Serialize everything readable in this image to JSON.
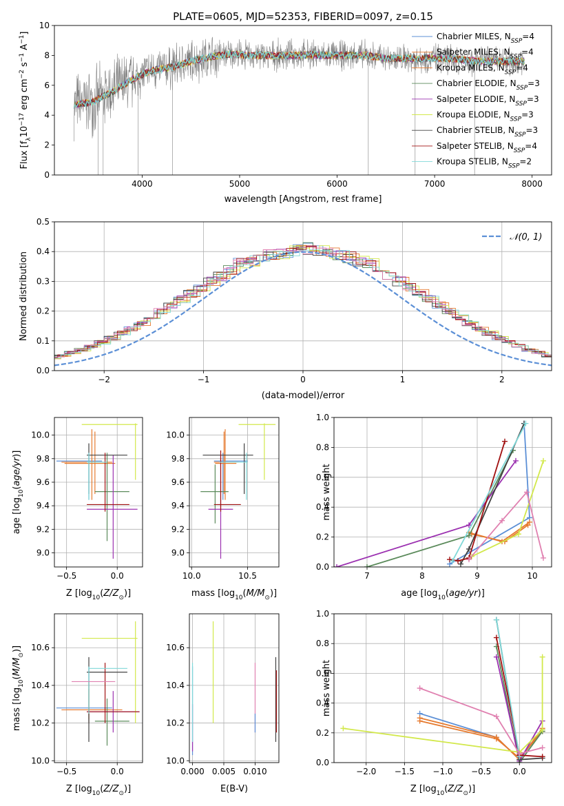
{
  "figure_title": "PLATE=0605, MJD=52353, FIBERID=0097, z=0.15",
  "colors": {
    "Chabrier MILES": "#5b8fd6",
    "Salpeter MILES": "#e67a2e",
    "Kroupa MILES": "#e67a2e",
    "Chabrier ELODIE": "#5a8a5a",
    "Salpeter ELODIE": "#9b30b0",
    "Kroupa ELODIE": "#d2e84a",
    "Chabrier STELIB": "#404040",
    "Salpeter STELIB": "#a01010",
    "Kroupa STELIB": "#7fd8d8",
    "pink": "#e080b0",
    "gray": "#808080",
    "gauss": "#5b8fd6"
  },
  "chart_data": [
    {
      "id": "spectrum",
      "type": "line",
      "title": "PLATE=0605, MJD=52353, FIBERID=0097, z=0.15",
      "xlabel": "wavelength [Angstrom, rest frame]",
      "ylabel": "Flux [f",
      "xlim": [
        3100,
        8200
      ],
      "ylim": [
        0,
        10
      ],
      "xticks": [
        4000,
        5000,
        6000,
        7000,
        8000
      ],
      "yticks": [
        0,
        2,
        4,
        6,
        8,
        10
      ],
      "legend_position": "right",
      "legend": [
        {
          "name": "Chabrier MILES, N",
          "sub": "SSP",
          "eq": "=4",
          "color": "#5b8fd6"
        },
        {
          "name": "Salpeter MILES, N",
          "sub": "SSP",
          "eq": "=4",
          "color": "#e67a2e"
        },
        {
          "name": "Kroupa MILES, N",
          "sub": "SSP",
          "eq": "=4",
          "color": "#e67a2e"
        },
        {
          "name": "Chabrier ELODIE, N",
          "sub": "SSP",
          "eq": "=3",
          "color": "#5a8a5a"
        },
        {
          "name": "Salpeter ELODIE, N",
          "sub": "SSP",
          "eq": "=3",
          "color": "#9b30b0"
        },
        {
          "name": "Kroupa ELODIE, N",
          "sub": "SSP",
          "eq": "=3",
          "color": "#d2e84a"
        },
        {
          "name": "Chabrier STELIB, N",
          "sub": "SSP",
          "eq": "=3",
          "color": "#404040"
        },
        {
          "name": "Salpeter STELIB, N",
          "sub": "SSP",
          "eq": "=4",
          "color": "#a01010"
        },
        {
          "name": "Kroupa STELIB, N",
          "sub": "SSP",
          "eq": "=2",
          "color": "#7fd8d8"
        }
      ],
      "model_continuum": {
        "x": [
          3300,
          3500,
          3700,
          3900,
          4100,
          4300,
          4500,
          4700,
          4900,
          5100,
          5300,
          5500,
          5700,
          5900,
          6100,
          6300,
          6500,
          6700,
          6900,
          7100,
          7300,
          7500,
          7700,
          7900
        ],
        "y": [
          4.7,
          4.9,
          5.6,
          6.4,
          7.0,
          7.2,
          7.6,
          7.9,
          8.1,
          8.0,
          8.0,
          8.0,
          8.05,
          8.0,
          8.0,
          8.0,
          7.8,
          7.8,
          7.8,
          7.8,
          7.7,
          7.6,
          7.6,
          7.6
        ]
      }
    },
    {
      "id": "residuals",
      "type": "histogram",
      "xlabel": "(data-model)/error",
      "ylabel": "Normed distribution",
      "xlim": [
        -2.5,
        2.5
      ],
      "ylim": [
        0,
        0.5
      ],
      "xticks": [
        -2,
        -1,
        0,
        1,
        2
      ],
      "xtick_labels": [
        "−2",
        "−1",
        "0",
        "1",
        "2"
      ],
      "yticks": [
        0.0,
        0.1,
        0.2,
        0.3,
        0.4,
        0.5
      ],
      "ytick_labels": [
        "0.0",
        "0.1",
        "0.2",
        "0.3",
        "0.4",
        "0.5"
      ],
      "legend": "𝒩(0, 1)",
      "legend_position": "top-right",
      "bin_width": 0.1,
      "base": [
        0.02,
        0.025,
        0.03,
        0.035,
        0.042,
        0.05,
        0.06,
        0.07,
        0.082,
        0.095,
        0.11,
        0.125,
        0.14,
        0.16,
        0.18,
        0.2,
        0.22,
        0.24,
        0.26,
        0.28,
        0.3,
        0.32,
        0.34,
        0.36,
        0.37,
        0.38,
        0.39,
        0.395,
        0.4,
        0.41,
        0.41,
        0.4,
        0.395,
        0.39,
        0.38,
        0.37,
        0.36,
        0.34,
        0.32,
        0.3,
        0.28,
        0.26,
        0.24,
        0.22,
        0.2,
        0.18,
        0.16,
        0.14,
        0.125,
        0.11,
        0.095,
        0.082,
        0.07,
        0.06,
        0.05,
        0.042,
        0.035,
        0.03,
        0.025,
        0.02
      ]
    },
    {
      "id": "age-vs-Z",
      "type": "errorbar",
      "xlabel": "Z [log",
      "ylabel": "age  [log",
      "xlim": [
        -0.62,
        0.25
      ],
      "ylim": [
        8.88,
        10.15
      ],
      "xticks": [
        -0.5,
        0.0
      ],
      "xtick_labels": [
        "−0.5",
        "0.0"
      ],
      "yticks": [
        9.0,
        9.2,
        9.4,
        9.6,
        9.8,
        10.0
      ],
      "ytick_labels": [
        "9.0",
        "9.2",
        "9.4",
        "9.6",
        "9.8",
        "10.0"
      ],
      "points": [
        {
          "x": -0.28,
          "y": 9.78,
          "x_lo": -0.6,
          "x_hi": -0.15,
          "y_lo": 9.45,
          "y_hi": 9.85,
          "color": "#5b8fd6"
        },
        {
          "x": -0.25,
          "y": 9.77,
          "x_lo": -0.55,
          "x_hi": -0.05,
          "y_lo": 9.45,
          "y_hi": 10.05,
          "color": "#e67a2e"
        },
        {
          "x": -0.22,
          "y": 9.76,
          "x_lo": -0.52,
          "x_hi": -0.02,
          "y_lo": 9.5,
          "y_hi": 10.03,
          "color": "#e67a2e"
        },
        {
          "x": -0.1,
          "y": 9.52,
          "x_lo": -0.22,
          "x_hi": 0.12,
          "y_lo": 9.1,
          "y_hi": 9.85,
          "color": "#5a8a5a"
        },
        {
          "x": -0.04,
          "y": 9.37,
          "x_lo": -0.3,
          "x_hi": 0.2,
          "y_lo": 8.95,
          "y_hi": 9.83,
          "color": "#9b30b0"
        },
        {
          "x": 0.18,
          "y": 10.09,
          "x_lo": -0.35,
          "x_hi": 0.2,
          "y_lo": 9.62,
          "y_hi": 10.1,
          "color": "#d2e84a"
        },
        {
          "x": -0.28,
          "y": 9.83,
          "x_lo": -0.3,
          "x_hi": 0.1,
          "y_lo": 9.5,
          "y_hi": 9.93,
          "color": "#404040"
        },
        {
          "x": -0.12,
          "y": 9.41,
          "x_lo": -0.3,
          "x_hi": 0.12,
          "y_lo": 9.35,
          "y_hi": 9.85,
          "color": "#a01010"
        },
        {
          "x": -0.28,
          "y": 9.77,
          "x_lo": -0.3,
          "x_hi": -0.1,
          "y_lo": 9.45,
          "y_hi": 9.85,
          "color": "#7fd8d8"
        }
      ]
    },
    {
      "id": "age-vs-mass",
      "type": "errorbar",
      "xlabel": "mass [log",
      "ylabel": "",
      "xlim": [
        9.98,
        10.78
      ],
      "ylim": [
        8.88,
        10.15
      ],
      "xticks": [
        10.0,
        10.5
      ],
      "xtick_labels": [
        "10.0",
        "10.5"
      ],
      "yticks": [
        9.0,
        9.2,
        9.4,
        9.6,
        9.8,
        10.0
      ],
      "ytick_labels": [
        "9.0",
        "9.2",
        "9.4",
        "9.6",
        "9.8",
        "10.0"
      ],
      "points": [
        {
          "x": 10.28,
          "y": 9.78,
          "x_lo": 10.2,
          "x_hi": 10.5,
          "y_lo": 9.45,
          "y_hi": 9.85,
          "color": "#5b8fd6"
        },
        {
          "x": 10.3,
          "y": 9.77,
          "x_lo": 10.2,
          "x_hi": 10.42,
          "y_lo": 9.45,
          "y_hi": 10.05,
          "color": "#e67a2e"
        },
        {
          "x": 10.29,
          "y": 9.76,
          "x_lo": 10.21,
          "x_hi": 10.4,
          "y_lo": 9.5,
          "y_hi": 10.03,
          "color": "#e67a2e"
        },
        {
          "x": 10.21,
          "y": 9.52,
          "x_lo": 10.08,
          "x_hi": 10.33,
          "y_lo": 9.25,
          "y_hi": 9.75,
          "color": "#5a8a5a"
        },
        {
          "x": 10.26,
          "y": 9.37,
          "x_lo": 10.15,
          "x_hi": 10.37,
          "y_lo": 8.95,
          "y_hi": 9.83,
          "color": "#9b30b0"
        },
        {
          "x": 10.65,
          "y": 10.09,
          "x_lo": 10.42,
          "x_hi": 10.75,
          "y_lo": 9.62,
          "y_hi": 10.1,
          "color": "#d2e84a"
        },
        {
          "x": 10.47,
          "y": 9.83,
          "x_lo": 10.1,
          "x_hi": 10.55,
          "y_lo": 9.5,
          "y_hi": 9.93,
          "color": "#404040"
        },
        {
          "x": 10.26,
          "y": 9.41,
          "x_lo": 10.2,
          "x_hi": 10.44,
          "y_lo": 9.35,
          "y_hi": 9.87,
          "color": "#a01010"
        },
        {
          "x": 10.49,
          "y": 9.77,
          "x_lo": 10.25,
          "x_hi": 10.5,
          "y_lo": 9.45,
          "y_hi": 9.85,
          "color": "#7fd8d8"
        }
      ]
    },
    {
      "id": "mass-weight-vs-age",
      "type": "line",
      "xlabel": "age  [log",
      "ylabel": "mass weight",
      "xlim": [
        6.4,
        10.35
      ],
      "ylim": [
        0,
        1.0
      ],
      "xticks": [
        7,
        8,
        9,
        10
      ],
      "xtick_labels": [
        "7",
        "8",
        "9",
        "10"
      ],
      "yticks": [
        0.0,
        0.2,
        0.4,
        0.6,
        0.8,
        1.0
      ],
      "ytick_labels": [
        "0.0",
        "0.2",
        "0.4",
        "0.6",
        "0.8",
        "1.0"
      ],
      "series": [
        {
          "color": "#5b8fd6",
          "x": [
            8.5,
            9.95,
            9.85
          ],
          "y": [
            0.02,
            0.33,
            0.96
          ]
        },
        {
          "color": "#e67a2e",
          "x": [
            8.85,
            9.45,
            9.95
          ],
          "y": [
            0.23,
            0.17,
            0.3
          ]
        },
        {
          "color": "#e67a2e",
          "x": [
            8.9,
            9.5,
            9.92
          ],
          "y": [
            0.22,
            0.17,
            0.28
          ]
        },
        {
          "color": "#5a8a5a",
          "x": [
            7.0,
            8.85,
            9.65
          ],
          "y": [
            0.0,
            0.21,
            0.78
          ]
        },
        {
          "color": "#9b30b0",
          "x": [
            6.45,
            8.85,
            9.7
          ],
          "y": [
            0.0,
            0.28,
            0.71
          ]
        },
        {
          "color": "#d2e84a",
          "x": [
            8.9,
            9.75,
            10.2
          ],
          "y": [
            0.07,
            0.22,
            0.71
          ]
        },
        {
          "color": "#404040",
          "x": [
            8.7,
            8.85,
            9.85
          ],
          "y": [
            0.02,
            0.12,
            0.96
          ]
        },
        {
          "color": "#a01010",
          "x": [
            8.5,
            8.65,
            8.85,
            9.5
          ],
          "y": [
            0.05,
            0.04,
            0.06,
            0.84
          ]
        },
        {
          "color": "#7fd8d8",
          "x": [
            8.55,
            9.88
          ],
          "y": [
            0.04,
            0.96
          ]
        },
        {
          "color": "#e080b0",
          "x": [
            8.85,
            9.45,
            9.9,
            10.2
          ],
          "y": [
            0.05,
            0.31,
            0.5,
            0.06
          ]
        }
      ]
    },
    {
      "id": "mass-vs-Z",
      "type": "errorbar",
      "xlabel": "Z [log",
      "ylabel": "mass [log",
      "xlim": [
        -0.62,
        0.25
      ],
      "ylim": [
        9.99,
        10.78
      ],
      "xticks": [
        -0.5,
        0.0
      ],
      "xtick_labels": [
        "−0.5",
        "0.0"
      ],
      "yticks": [
        10.0,
        10.2,
        10.4,
        10.6
      ],
      "ytick_labels": [
        "10.0",
        "10.2",
        "10.4",
        "10.6"
      ],
      "points": [
        {
          "x": -0.28,
          "y": 10.28,
          "x_lo": -0.6,
          "x_hi": -0.05,
          "y_lo": 10.2,
          "y_hi": 10.5,
          "color": "#5b8fd6"
        },
        {
          "x": -0.28,
          "y": 10.27,
          "x_lo": -0.55,
          "x_hi": -0.08,
          "y_lo": 10.22,
          "y_hi": 10.42,
          "color": "#e67a2e"
        },
        {
          "x": -0.28,
          "y": 10.27,
          "x_lo": -0.5,
          "x_hi": 0.05,
          "y_lo": 10.2,
          "y_hi": 10.38,
          "color": "#e67a2e"
        },
        {
          "x": -0.1,
          "y": 10.21,
          "x_lo": -0.22,
          "x_hi": 0.12,
          "y_lo": 10.08,
          "y_hi": 10.33,
          "color": "#5a8a5a"
        },
        {
          "x": -0.04,
          "y": 10.26,
          "x_lo": -0.3,
          "x_hi": 0.22,
          "y_lo": 10.15,
          "y_hi": 10.37,
          "color": "#9b30b0"
        },
        {
          "x": 0.18,
          "y": 10.65,
          "x_lo": -0.35,
          "x_hi": 0.2,
          "y_lo": 10.2,
          "y_hi": 10.74,
          "color": "#d2e84a"
        },
        {
          "x": -0.28,
          "y": 10.47,
          "x_lo": -0.3,
          "x_hi": 0.1,
          "y_lo": 10.1,
          "y_hi": 10.55,
          "color": "#404040"
        },
        {
          "x": -0.12,
          "y": 10.26,
          "x_lo": -0.3,
          "x_hi": 0.22,
          "y_lo": 10.2,
          "y_hi": 10.52,
          "color": "#a01010"
        },
        {
          "x": -0.28,
          "y": 10.49,
          "x_lo": -0.28,
          "x_hi": 0.1,
          "y_lo": 10.25,
          "y_hi": 10.5,
          "color": "#7fd8d8"
        },
        {
          "x": -0.22,
          "y": 10.42,
          "x_lo": -0.45,
          "x_hi": -0.02,
          "y_lo": 10.42,
          "y_hi": 10.42,
          "color": "#e080b0"
        }
      ]
    },
    {
      "id": "mass-vs-ebv",
      "type": "errorbar",
      "xlabel": "E(B-V)",
      "ylabel": "",
      "xlim": [
        -0.0005,
        0.0138
      ],
      "ylim": [
        9.99,
        10.78
      ],
      "xticks": [
        0.0,
        0.005,
        0.01
      ],
      "xtick_labels": [
        "0.000",
        "0.005",
        "0.010"
      ],
      "yticks": [
        10.0,
        10.2,
        10.4,
        10.6
      ],
      "ytick_labels": [
        "10.0",
        "10.2",
        "10.4",
        "10.6"
      ],
      "points": [
        {
          "x": 0.0,
          "y": 10.28,
          "y_lo": 10.03,
          "y_hi": 10.5,
          "color": "#5b8fd6"
        },
        {
          "x": 0.0,
          "y": 10.27,
          "y_lo": 10.05,
          "y_hi": 10.3,
          "color": "#9b30b0"
        },
        {
          "x": 0.0,
          "y": 10.3,
          "y_lo": 10.1,
          "y_hi": 10.52,
          "color": "#7fd8d8"
        },
        {
          "x": 0.0033,
          "y": 10.47,
          "y_lo": 10.2,
          "y_hi": 10.74,
          "color": "#d2e84a"
        },
        {
          "x": 0.01,
          "y": 10.42,
          "y_lo": 10.15,
          "y_hi": 10.52,
          "color": "#e080b0"
        },
        {
          "x": 0.01,
          "y": 10.2,
          "y_lo": 10.15,
          "y_hi": 10.25,
          "color": "#5b8fd6"
        },
        {
          "x": 0.0133,
          "y": 10.33,
          "y_lo": 10.1,
          "y_hi": 10.55,
          "color": "#404040"
        },
        {
          "x": 0.0134,
          "y": 10.3,
          "y_lo": 10.15,
          "y_hi": 10.48,
          "color": "#a01010"
        }
      ]
    },
    {
      "id": "mass-weight-vs-Z",
      "type": "line",
      "xlabel": "Z [log",
      "ylabel": "mass weight",
      "xlim": [
        -2.42,
        0.42
      ],
      "ylim": [
        0,
        1.0
      ],
      "xticks": [
        -2.0,
        -1.5,
        -1.0,
        -0.5,
        0.0
      ],
      "xtick_labels": [
        "−2.0",
        "−1.5",
        "−1.0",
        "−0.5",
        "0.0"
      ],
      "yticks": [
        0.0,
        0.2,
        0.4,
        0.6,
        0.8,
        1.0
      ],
      "ytick_labels": [
        "0.0",
        "0.2",
        "0.4",
        "0.6",
        "0.8",
        "1.0"
      ],
      "series": [
        {
          "color": "#5b8fd6",
          "x": [
            -1.3,
            -0.3,
            0.0,
            0.3
          ],
          "y": [
            0.33,
            0.17,
            0.02,
            0.22
          ]
        },
        {
          "color": "#e67a2e",
          "x": [
            -1.3,
            -0.3,
            0.0,
            0.3
          ],
          "y": [
            0.3,
            0.17,
            0.02,
            0.23
          ]
        },
        {
          "color": "#e67a2e",
          "x": [
            -1.3,
            -0.3,
            0.0,
            0.3
          ],
          "y": [
            0.28,
            0.16,
            0.03,
            0.21
          ]
        },
        {
          "color": "#5a8a5a",
          "x": [
            -0.3,
            0.0,
            0.3
          ],
          "y": [
            0.78,
            0.0,
            0.21
          ]
        },
        {
          "color": "#9b30b0",
          "x": [
            -0.3,
            0.0,
            0.3
          ],
          "y": [
            0.71,
            0.01,
            0.28
          ]
        },
        {
          "color": "#d2e84a",
          "x": [
            -2.3,
            0.0,
            0.3,
            0.3
          ],
          "y": [
            0.23,
            0.07,
            0.22,
            0.71
          ]
        },
        {
          "color": "#404040",
          "x": [
            -0.3,
            0.0,
            0.3
          ],
          "y": [
            0.96,
            0.02,
            0.03
          ]
        },
        {
          "color": "#a01010",
          "x": [
            -0.3,
            0.0,
            0.3
          ],
          "y": [
            0.84,
            0.05,
            0.04
          ]
        },
        {
          "color": "#7fd8d8",
          "x": [
            -0.3,
            0.0
          ],
          "y": [
            0.96,
            0.04
          ]
        },
        {
          "color": "#e080b0",
          "x": [
            -1.3,
            -0.3,
            0.0,
            0.3
          ],
          "y": [
            0.5,
            0.31,
            0.06,
            0.1
          ]
        }
      ]
    }
  ]
}
